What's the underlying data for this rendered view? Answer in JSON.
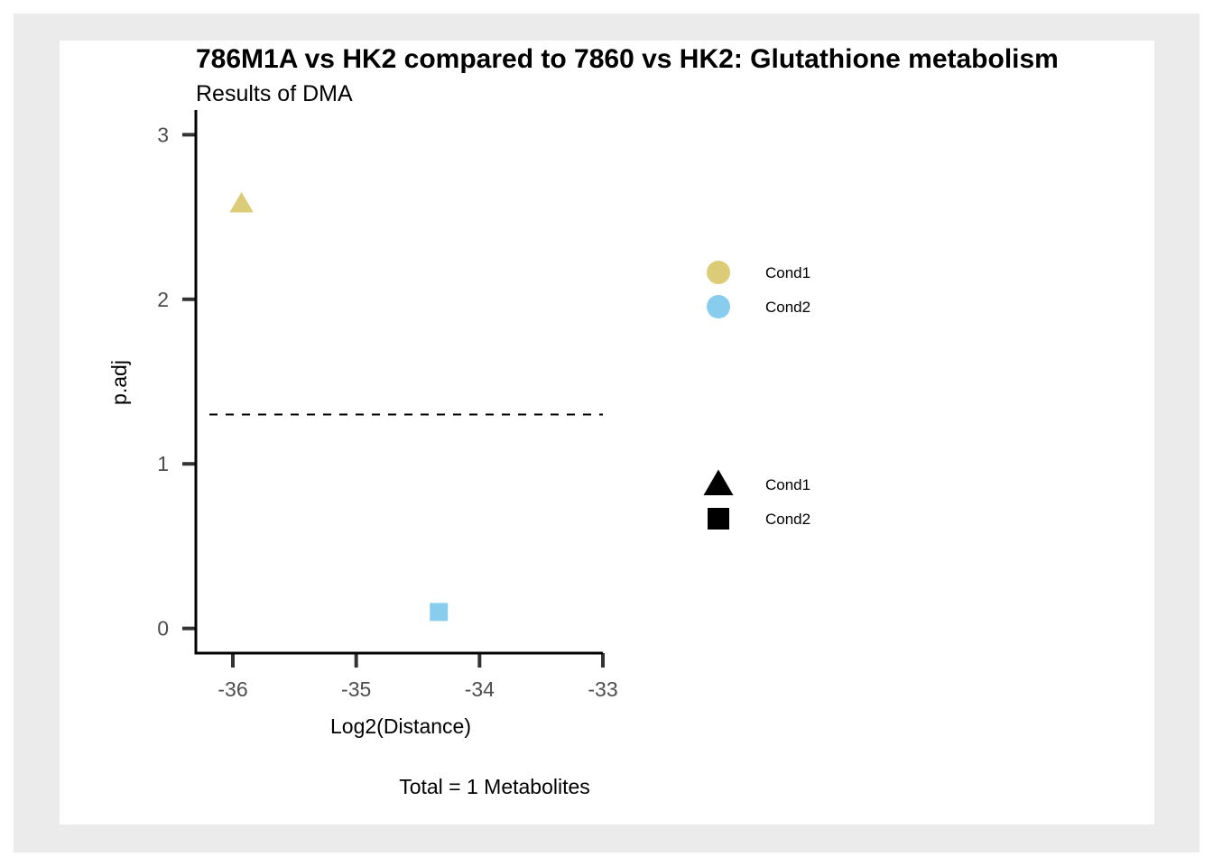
{
  "chart_data": {
    "type": "scatter",
    "title": "786M1A vs HK2 compared to 7860 vs HK2: Glutathione metabolism",
    "subtitle": "Results of DMA",
    "xlabel": "Log2(Distance)",
    "ylabel": "p.adj",
    "caption": "Total = 1 Metabolites",
    "xlim": [
      -36.3,
      -33
    ],
    "ylim": [
      -0.15,
      3.15
    ],
    "x_ticks": [
      -36,
      -35,
      -34,
      -33
    ],
    "y_ticks": [
      0,
      1,
      2,
      3
    ],
    "threshold_y": 1.3,
    "threshold_style": "dashed",
    "grid": false,
    "legend_position": "right",
    "points": [
      {
        "x": -35.93,
        "y": 2.58,
        "color_group": "Cond1",
        "shape_group": "Cond1"
      },
      {
        "x": -34.33,
        "y": 0.1,
        "color_group": "Cond2",
        "shape_group": "Cond2"
      }
    ],
    "legend_color": [
      {
        "label": "Cond1",
        "color": "#DDCC77"
      },
      {
        "label": "Cond2",
        "color": "#88CCEE"
      }
    ],
    "legend_shape": [
      {
        "label": "Cond1",
        "shape": "triangle"
      },
      {
        "label": "Cond2",
        "shape": "square"
      }
    ]
  },
  "colors": {
    "outer_background": "#ebebeb",
    "panel_background": "#ffffff",
    "axis_line": "#000000",
    "tick_mark": "#333333",
    "tick_label": "#4d4d4d",
    "cond1": "#DDCC77",
    "cond2": "#88CCEE"
  }
}
